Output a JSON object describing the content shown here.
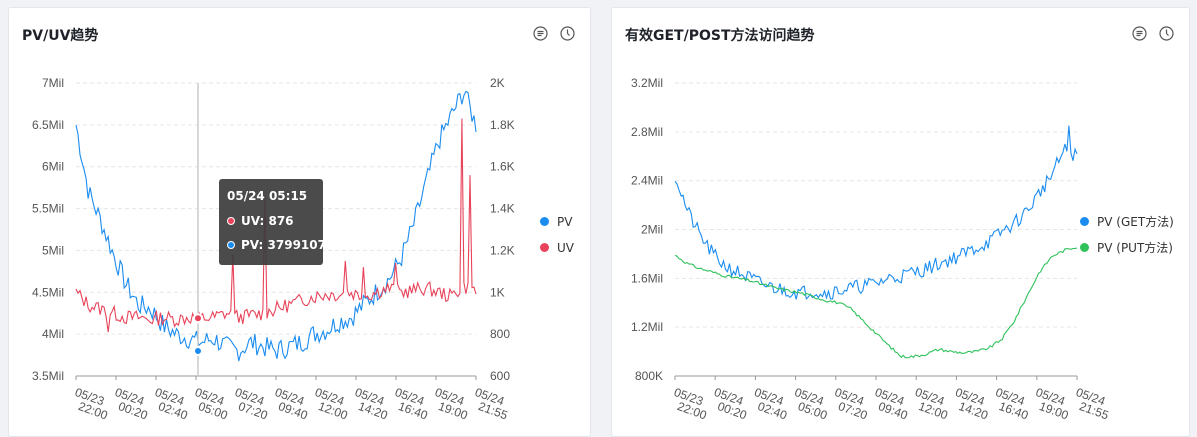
{
  "panels": [
    {
      "title": "PV/UV趋势",
      "legend": [
        {
          "name": "PV",
          "color": "#1a8cf0"
        },
        {
          "name": "UV",
          "color": "#e8435a"
        }
      ],
      "tooltip": {
        "title": "05/24 05:15",
        "rows": [
          {
            "label": "UV: 876",
            "color": "#e8435a"
          },
          {
            "label": "PV: 3799107",
            "color": "#1a8cf0"
          }
        ]
      }
    },
    {
      "title": "有效GET/POST方法访问趋势",
      "legend": [
        {
          "name": "PV (GET方法)",
          "color": "#1a8cf0"
        },
        {
          "name": "PV (PUT方法)",
          "color": "#2fc25b"
        }
      ]
    }
  ],
  "icons": [
    "list-icon",
    "clock-icon"
  ],
  "chart_data": [
    {
      "type": "line",
      "title": "PV/UV趋势",
      "x_tick_labels": [
        "05/23 22:00",
        "05/24 00:20",
        "05/24 02:40",
        "05/24 05:00",
        "05/24 07:20",
        "05/24 09:40",
        "05/24 12:00",
        "05/24 14:20",
        "05/24 16:40",
        "05/24 19:00",
        "05/24 21:55"
      ],
      "y_left": {
        "ticks": [
          "3.5Mil",
          "4Mil",
          "4.5Mil",
          "5Mil",
          "5.5Mil",
          "6Mil",
          "6.5Mil",
          "7Mil"
        ],
        "ylim": [
          3500000,
          7000000
        ]
      },
      "y_right": {
        "ticks": [
          "600",
          "800",
          "1K",
          "1.2K",
          "1.4K",
          "1.6K",
          "1.8K",
          "2K"
        ],
        "ylim": [
          600,
          2000
        ]
      },
      "series": [
        {
          "name": "PV",
          "axis": "left",
          "color": "#1a8cf0",
          "values": [
            6500000,
            5700000,
            5350000,
            4950000,
            4600000,
            4350000,
            4300000,
            4100000,
            4000000,
            3950000,
            3900000,
            3950000,
            3850000,
            3800000,
            3900000,
            3850000,
            3800000,
            3850000,
            3900000,
            4000000,
            4050000,
            4150000,
            4200000,
            4350000,
            4500000,
            4650000,
            4900000,
            5300000,
            5800000,
            6300000,
            6600000,
            6900000,
            6500000
          ]
        },
        {
          "name": "UV",
          "axis": "right",
          "color": "#e8435a",
          "values": [
            1000,
            940,
            920,
            900,
            880,
            880,
            870,
            880,
            870,
            880,
            876,
            880,
            900,
            880,
            890,
            900,
            920,
            940,
            960,
            980,
            990,
            990,
            1000,
            980,
            1000,
            1020,
            1000,
            1010,
            1020,
            1000,
            980,
            1030,
            1000
          ]
        }
      ],
      "highlight": {
        "x_label": "05/24 05:15",
        "UV": 876,
        "PV": 3799107
      }
    },
    {
      "type": "line",
      "title": "有效GET/POST方法访问趋势",
      "x_tick_labels": [
        "05/23 22:00",
        "05/24 00:20",
        "05/24 02:40",
        "05/24 05:00",
        "05/24 07:20",
        "05/24 09:40",
        "05/24 12:00",
        "05/24 14:20",
        "05/24 16:40",
        "05/24 19:00",
        "05/24 21:55"
      ],
      "y_left": {
        "ticks": [
          "800K",
          "1.2Mil",
          "1.6Mil",
          "2Mil",
          "2.4Mil",
          "2.8Mil",
          "3.2Mil"
        ],
        "ylim": [
          800000,
          3200000
        ]
      },
      "series": [
        {
          "name": "PV (GET方法)",
          "color": "#1a8cf0",
          "values": [
            2450000,
            2150000,
            1950000,
            1800000,
            1700000,
            1650000,
            1600000,
            1550000,
            1520000,
            1500000,
            1480000,
            1500000,
            1480000,
            1500000,
            1520000,
            1540000,
            1560000,
            1600000,
            1620000,
            1650000,
            1680000,
            1720000,
            1760000,
            1800000,
            1850000,
            1900000,
            1980000,
            2050000,
            2150000,
            2300000,
            2450000,
            2650000,
            2600000
          ]
        },
        {
          "name": "PV (PUT方法)",
          "color": "#2fc25b",
          "values": [
            1790000,
            1720000,
            1680000,
            1650000,
            1620000,
            1600000,
            1580000,
            1550000,
            1520000,
            1500000,
            1480000,
            1450000,
            1420000,
            1400000,
            1350000,
            1250000,
            1150000,
            1050000,
            960000,
            960000,
            980000,
            1020000,
            1000000,
            990000,
            1000000,
            1030000,
            1100000,
            1250000,
            1450000,
            1650000,
            1780000,
            1830000,
            1860000
          ]
        }
      ]
    }
  ]
}
